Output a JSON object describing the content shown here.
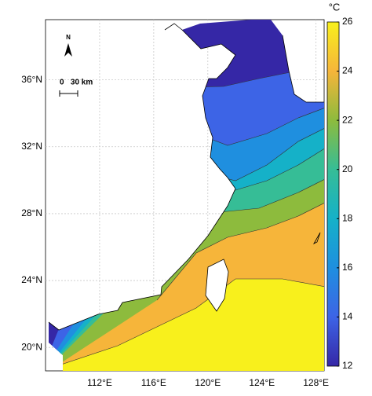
{
  "map": {
    "unit_label": "°C",
    "north_label": "N",
    "scale_label": "0   30 km",
    "xlim": [
      108,
      128.6
    ],
    "ylim": [
      18.6,
      39.6
    ],
    "xticks": [
      {
        "value": 112,
        "label": "112°E"
      },
      {
        "value": 116,
        "label": "116°E"
      },
      {
        "value": 120,
        "label": "120°E"
      },
      {
        "value": 124,
        "label": "124°E"
      },
      {
        "value": 128,
        "label": "128°E"
      }
    ],
    "yticks": [
      {
        "value": 20,
        "label": "20°N"
      },
      {
        "value": 24,
        "label": "24°N"
      },
      {
        "value": 28,
        "label": "28°N"
      },
      {
        "value": 32,
        "label": "32°N"
      },
      {
        "value": 36,
        "label": "36°N"
      }
    ],
    "colorbar": {
      "lim": [
        12,
        26
      ],
      "ticks": [
        12,
        14,
        16,
        18,
        20,
        22,
        24,
        26
      ],
      "colors": [
        "#3527a6",
        "#3d64e6",
        "#1f8fdf",
        "#15b1c8",
        "#36bd96",
        "#8dbb3d",
        "#f6b53a",
        "#f8f01c"
      ]
    },
    "grid": true
  }
}
